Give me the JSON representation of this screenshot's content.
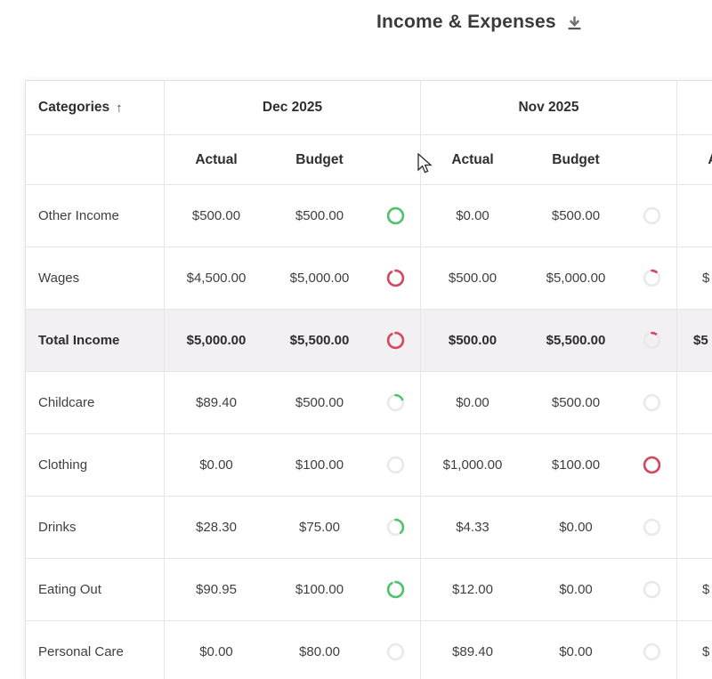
{
  "page": {
    "title": "Income & Expenses"
  },
  "colors": {
    "green": "#4dc46a",
    "red": "#d6465f",
    "track": "#e9e9e9",
    "border": "#e7e5e7",
    "highlight_row_bg": "#f2f0f2",
    "header_text": "#2f2f2f",
    "body_text": "#3f3f3f"
  },
  "icons": {
    "download": "download-icon",
    "sort_up": "↑"
  },
  "table": {
    "categories_header": {
      "label": "Categories"
    },
    "subheaders": {
      "actual": "Actual",
      "budget": "Budget"
    },
    "month_groups": [
      {
        "label": "Dec 2025"
      },
      {
        "label": "Nov 2025"
      },
      {
        "label": ""
      }
    ],
    "rows": [
      {
        "category": "Other Income",
        "highlight": false,
        "months": [
          {
            "actual": "$500.00",
            "budget": "$500.00",
            "ring_pct": 100,
            "ring_status": "green"
          },
          {
            "actual": "$0.00",
            "budget": "$500.00",
            "ring_pct": 0,
            "ring_status": "none"
          }
        ],
        "next_partial": ""
      },
      {
        "category": "Wages",
        "highlight": false,
        "months": [
          {
            "actual": "$4,500.00",
            "budget": "$5,000.00",
            "ring_pct": 90,
            "ring_status": "red"
          },
          {
            "actual": "$500.00",
            "budget": "$5,000.00",
            "ring_pct": 10,
            "ring_status": "red"
          }
        ],
        "next_partial": "$"
      },
      {
        "category": "Total Income",
        "highlight": true,
        "months": [
          {
            "actual": "$5,000.00",
            "budget": "$5,500.00",
            "ring_pct": 91,
            "ring_status": "red"
          },
          {
            "actual": "$500.00",
            "budget": "$5,500.00",
            "ring_pct": 9,
            "ring_status": "red"
          }
        ],
        "next_partial": "$5"
      },
      {
        "category": "Childcare",
        "highlight": false,
        "months": [
          {
            "actual": "$89.40",
            "budget": "$500.00",
            "ring_pct": 18,
            "ring_status": "green"
          },
          {
            "actual": "$0.00",
            "budget": "$500.00",
            "ring_pct": 0,
            "ring_status": "none"
          }
        ],
        "next_partial": ""
      },
      {
        "category": "Clothing",
        "highlight": false,
        "months": [
          {
            "actual": "$0.00",
            "budget": "$100.00",
            "ring_pct": 0,
            "ring_status": "none"
          },
          {
            "actual": "$1,000.00",
            "budget": "$100.00",
            "ring_pct": 100,
            "ring_status": "red"
          }
        ],
        "next_partial": ""
      },
      {
        "category": "Drinks",
        "highlight": false,
        "months": [
          {
            "actual": "$28.30",
            "budget": "$75.00",
            "ring_pct": 38,
            "ring_status": "green"
          },
          {
            "actual": "$4.33",
            "budget": "$0.00",
            "ring_pct": 0,
            "ring_status": "none"
          }
        ],
        "next_partial": ""
      },
      {
        "category": "Eating Out",
        "highlight": false,
        "months": [
          {
            "actual": "$90.95",
            "budget": "$100.00",
            "ring_pct": 91,
            "ring_status": "green"
          },
          {
            "actual": "$12.00",
            "budget": "$0.00",
            "ring_pct": 0,
            "ring_status": "none"
          }
        ],
        "next_partial": "$"
      },
      {
        "category": "Personal Care",
        "highlight": false,
        "months": [
          {
            "actual": "$0.00",
            "budget": "$80.00",
            "ring_pct": 0,
            "ring_status": "none"
          },
          {
            "actual": "$89.40",
            "budget": "$0.00",
            "ring_pct": 0,
            "ring_status": "none"
          }
        ],
        "next_partial": "$"
      }
    ]
  }
}
